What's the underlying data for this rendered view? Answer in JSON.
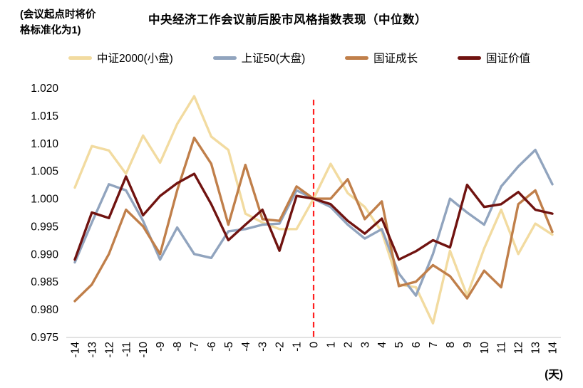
{
  "annotation": {
    "line1": "(会议起点时将价",
    "line2": "格标准化为1)"
  },
  "header": {
    "title": "中央经济工作会议前后股市风格指数表现（中位数）"
  },
  "chart_data": {
    "type": "line",
    "title": "中央经济工作会议前后股市风格指数表现（中位数）",
    "xlabel": "(天)",
    "ylabel": "",
    "ylim": [
      0.975,
      1.02
    ],
    "ytick_labels": [
      "0.975",
      "0.980",
      "0.985",
      "0.990",
      "0.995",
      "1.000",
      "1.005",
      "1.010",
      "1.015",
      "1.020"
    ],
    "x": [
      -14,
      -13,
      -12,
      -11,
      -10,
      -9,
      -8,
      -7,
      -6,
      -5,
      -4,
      -3,
      -2,
      -1,
      0,
      1,
      2,
      3,
      4,
      5,
      6,
      7,
      8,
      9,
      10,
      11,
      12,
      13,
      14
    ],
    "event_line": {
      "x": 0,
      "color": "#ff1f1f",
      "style": "dashed"
    },
    "grid": "off",
    "legend_position": "top",
    "axis_line_color": "#d9d9d9",
    "series": [
      {
        "name": "中证2000(小盘)",
        "color": "#f2dba0",
        "values": [
          1.002,
          1.0095,
          1.0087,
          1.0045,
          1.0114,
          1.0065,
          1.0135,
          1.0185,
          1.0112,
          1.0088,
          0.9973,
          0.9957,
          0.9945,
          0.9945,
          1.0,
          1.0063,
          1.001,
          0.9985,
          0.994,
          0.9845,
          0.984,
          0.9775,
          0.9906,
          0.9825,
          0.991,
          0.998,
          0.99,
          0.9955,
          0.9935
        ]
      },
      {
        "name": "上证50(大盘)",
        "color": "#91a4be",
        "values": [
          0.9885,
          0.9957,
          1.0026,
          1.0015,
          0.996,
          0.989,
          0.9948,
          0.99,
          0.9893,
          0.9941,
          0.9945,
          0.9953,
          0.9955,
          1.0015,
          1.0,
          0.9985,
          0.9953,
          0.9928,
          0.9945,
          0.9865,
          0.9825,
          0.99,
          1.0,
          0.9975,
          0.9953,
          1.0022,
          1.0058,
          1.0088,
          1.0026
        ]
      },
      {
        "name": "国证成长",
        "color": "#c07f4a",
        "values": [
          0.9815,
          0.9845,
          0.99,
          0.998,
          0.995,
          0.99,
          1.0015,
          1.011,
          1.0063,
          0.9953,
          1.0061,
          0.9963,
          0.996,
          1.0022,
          1.0,
          1.0,
          1.0035,
          0.9963,
          0.9995,
          0.9842,
          0.985,
          0.988,
          0.986,
          0.982,
          0.987,
          0.984,
          0.999,
          1.0015,
          0.994
        ]
      },
      {
        "name": "国证价值",
        "color": "#701310",
        "values": [
          0.989,
          0.9975,
          0.9965,
          1.004,
          0.997,
          1.0005,
          1.0028,
          1.0045,
          0.999,
          0.9925,
          0.9953,
          0.998,
          0.9906,
          1.0005,
          1.0,
          0.999,
          0.996,
          0.9937,
          0.9964,
          0.989,
          0.9905,
          0.9925,
          0.9912,
          1.0025,
          0.9985,
          0.999,
          1.0012,
          0.998,
          0.9973
        ]
      }
    ]
  }
}
